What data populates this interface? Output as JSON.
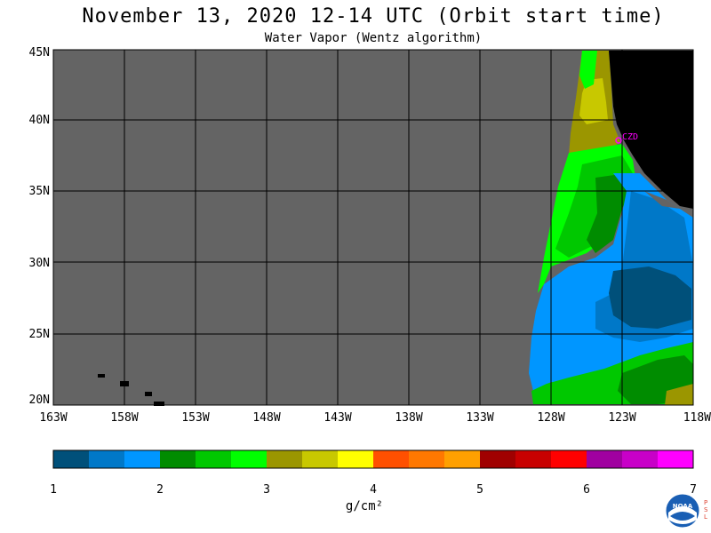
{
  "header": {
    "title": "November 13, 2020  12-14 UTC  (Orbit start time)",
    "subtitle": "Water Vapor (Wentz algorithm)"
  },
  "chart_data": {
    "type": "heatmap",
    "title": "November 13, 2020  12-14 UTC  (Orbit start time)",
    "subtitle": "Water Vapor (Wentz algorithm)",
    "lat_ticks": [
      "45N",
      "40N",
      "35N",
      "30N",
      "25N",
      "20N"
    ],
    "lon_ticks": [
      "163W",
      "158W",
      "153W",
      "148W",
      "143W",
      "138W",
      "133W",
      "128W",
      "123W",
      "118W"
    ],
    "lat_range": [
      20,
      45
    ],
    "lon_range": [
      -163,
      -118
    ],
    "grid": true,
    "colorbar": {
      "labels": [
        "1",
        "2",
        "3",
        "4",
        "5",
        "6",
        "7"
      ],
      "units": "g/cm²",
      "range": [
        1,
        7
      ],
      "colors": [
        "#00507a",
        "#0078c8",
        "#0096ff",
        "#008c00",
        "#00c800",
        "#00ff00",
        "#9b9600",
        "#c8c800",
        "#ffff00",
        "#ff5000",
        "#ff7800",
        "#ffa000",
        "#a00000",
        "#c80000",
        "#ff0000",
        "#a000a0",
        "#c800c8",
        "#ff00ff"
      ]
    },
    "annotation": "CZD",
    "no_data_color": "#646464",
    "land_color": "#000000"
  },
  "footer": {
    "logo": "noaa-logo",
    "logo_text": "NOAA",
    "side_text": "PSL"
  }
}
